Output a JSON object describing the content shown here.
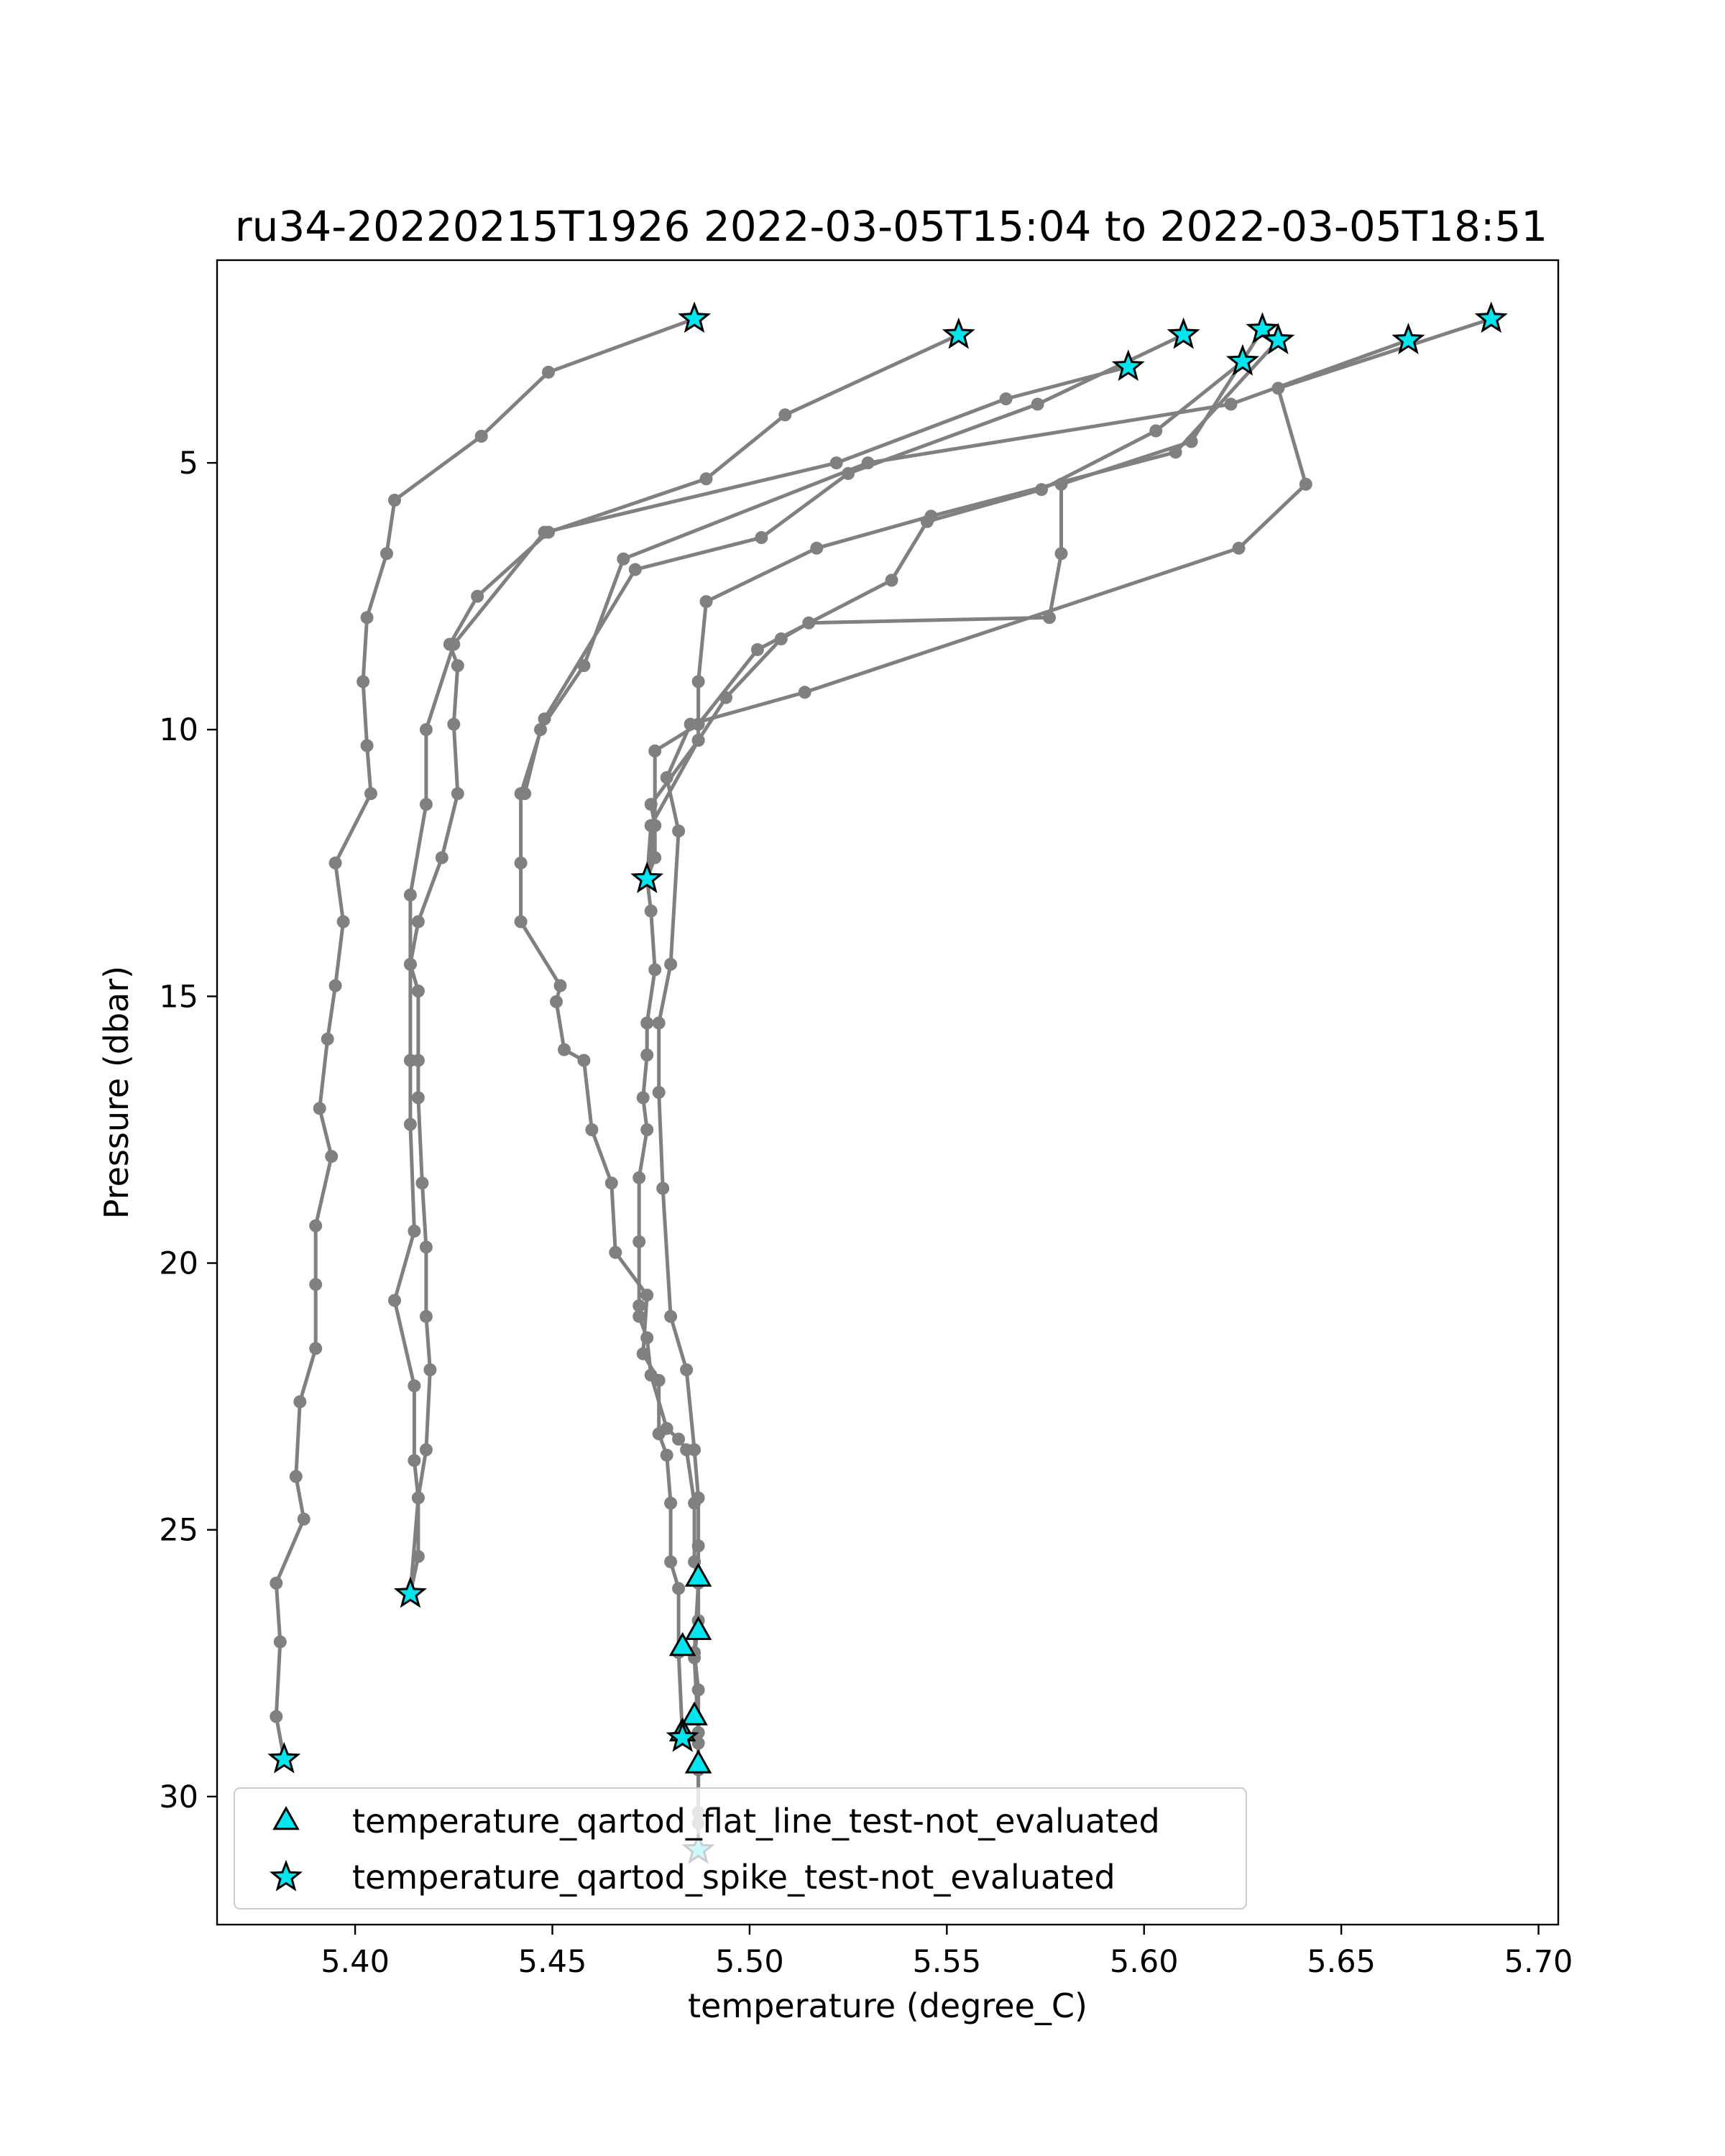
{
  "chart_data": {
    "type": "scatter",
    "title": "ru34-20220215T1926 2022-03-05T15:04 to 2022-03-05T18:51",
    "xlabel": "temperature (degree_C)",
    "ylabel": "Pressure (dbar)",
    "xlim": [
      5.365,
      5.705
    ],
    "ylim": [
      32.4,
      1.2
    ],
    "y_inverted": true,
    "x_ticks": [
      5.4,
      5.45,
      5.5,
      5.55,
      5.6,
      5.65,
      5.7
    ],
    "x_tick_labels": [
      "5.40",
      "5.45",
      "5.50",
      "5.55",
      "5.60",
      "5.65",
      "5.70"
    ],
    "y_ticks": [
      5,
      10,
      15,
      20,
      25,
      30
    ],
    "y_tick_labels": [
      "5",
      "10",
      "15",
      "20",
      "25",
      "30"
    ],
    "grid": false,
    "legend_position": "lower-left",
    "colors": {
      "profile_line": "#808080",
      "marker_fill": "#00e5ee",
      "marker_edge": "#000000"
    },
    "series": [
      {
        "role": "profile",
        "points": [
          [
            5.486,
            2.3
          ],
          [
            5.449,
            3.3
          ],
          [
            5.432,
            4.5
          ],
          [
            5.41,
            5.7
          ],
          [
            5.408,
            6.7
          ],
          [
            5.403,
            7.9
          ],
          [
            5.402,
            9.1
          ],
          [
            5.403,
            10.3
          ],
          [
            5.404,
            11.2
          ],
          [
            5.395,
            12.5
          ],
          [
            5.397,
            13.6
          ],
          [
            5.395,
            14.8
          ],
          [
            5.393,
            15.8
          ],
          [
            5.391,
            17.1
          ],
          [
            5.394,
            18.0
          ],
          [
            5.39,
            19.3
          ],
          [
            5.39,
            20.4
          ],
          [
            5.39,
            21.6
          ],
          [
            5.386,
            22.6
          ],
          [
            5.385,
            24.0
          ],
          [
            5.387,
            24.8
          ],
          [
            5.38,
            26.0
          ],
          [
            5.381,
            27.1
          ],
          [
            5.38,
            28.5
          ],
          [
            5.382,
            29.3
          ]
        ]
      },
      {
        "role": "profile",
        "points": [
          [
            5.553,
            2.6
          ],
          [
            5.509,
            4.1
          ],
          [
            5.489,
            5.3
          ],
          [
            5.449,
            6.3
          ],
          [
            5.431,
            7.5
          ],
          [
            5.424,
            8.4
          ],
          [
            5.426,
            8.8
          ],
          [
            5.425,
            9.9
          ],
          [
            5.426,
            11.2
          ],
          [
            5.422,
            12.4
          ],
          [
            5.416,
            13.6
          ],
          [
            5.414,
            14.4
          ],
          [
            5.416,
            14.9
          ],
          [
            5.416,
            16.2
          ],
          [
            5.416,
            16.9
          ],
          [
            5.417,
            18.5
          ],
          [
            5.418,
            19.7
          ],
          [
            5.418,
            21.0
          ],
          [
            5.419,
            22.0
          ],
          [
            5.418,
            23.5
          ],
          [
            5.416,
            24.4
          ],
          [
            5.416,
            25.5
          ],
          [
            5.414,
            26.2
          ]
        ]
      },
      {
        "role": "profile",
        "points": [
          [
            5.596,
            3.2
          ],
          [
            5.565,
            3.8
          ],
          [
            5.522,
            5.0
          ],
          [
            5.448,
            6.3
          ],
          [
            5.425,
            8.4
          ],
          [
            5.418,
            10.0
          ],
          [
            5.418,
            11.4
          ],
          [
            5.414,
            13.1
          ],
          [
            5.414,
            14.4
          ],
          [
            5.414,
            16.2
          ],
          [
            5.414,
            17.4
          ],
          [
            5.415,
            19.4
          ],
          [
            5.41,
            20.7
          ],
          [
            5.415,
            22.3
          ],
          [
            5.415,
            23.7
          ],
          [
            5.416,
            24.4
          ],
          [
            5.414,
            26.2
          ]
        ]
      },
      {
        "role": "profile",
        "points": [
          [
            5.61,
            2.6
          ],
          [
            5.573,
            3.9
          ],
          [
            5.525,
            5.2
          ],
          [
            5.503,
            6.4
          ],
          [
            5.471,
            7.0
          ],
          [
            5.448,
            9.8
          ],
          [
            5.442,
            11.2
          ],
          [
            5.442,
            12.5
          ],
          [
            5.442,
            13.6
          ],
          [
            5.452,
            14.8
          ],
          [
            5.451,
            15.1
          ],
          [
            5.453,
            16.0
          ],
          [
            5.458,
            16.2
          ],
          [
            5.46,
            17.5
          ],
          [
            5.465,
            18.5
          ],
          [
            5.466,
            19.8
          ],
          [
            5.474,
            20.6
          ],
          [
            5.473,
            21.7
          ],
          [
            5.477,
            22.2
          ],
          [
            5.477,
            23.2
          ],
          [
            5.479,
            23.6
          ],
          [
            5.48,
            24.5
          ],
          [
            5.48,
            25.6
          ],
          [
            5.482,
            26.1
          ],
          [
            5.482,
            27.3
          ],
          [
            5.483,
            28.9
          ]
        ]
      },
      {
        "role": "profile",
        "points": [
          [
            5.625,
            3.1
          ],
          [
            5.603,
            4.4
          ],
          [
            5.574,
            5.5
          ],
          [
            5.545,
            6.1
          ],
          [
            5.536,
            7.2
          ],
          [
            5.502,
            8.5
          ],
          [
            5.487,
            9.9
          ],
          [
            5.476,
            10.4
          ],
          [
            5.476,
            11.8
          ],
          [
            5.476,
            12.4
          ],
          [
            5.474,
            12.8
          ],
          [
            5.475,
            13.4
          ],
          [
            5.476,
            14.5
          ],
          [
            5.474,
            15.5
          ],
          [
            5.474,
            16.1
          ],
          [
            5.473,
            16.9
          ],
          [
            5.474,
            17.5
          ],
          [
            5.472,
            18.4
          ],
          [
            5.472,
            19.6
          ],
          [
            5.472,
            20.8
          ],
          [
            5.472,
            21.0
          ],
          [
            5.474,
            21.4
          ],
          [
            5.475,
            22.1
          ],
          [
            5.479,
            23.1
          ],
          [
            5.482,
            23.3
          ],
          [
            5.484,
            23.5
          ],
          [
            5.486,
            24.5
          ],
          [
            5.486,
            25.6
          ],
          [
            5.487,
            26.0
          ],
          [
            5.486,
            27.3
          ],
          [
            5.487,
            28.0
          ],
          [
            5.487,
            29.0
          ],
          [
            5.487,
            30.3
          ],
          [
            5.487,
            31.0
          ]
        ]
      },
      {
        "role": "profile",
        "points": [
          [
            5.63,
            2.5
          ],
          [
            5.612,
            4.6
          ],
          [
            5.579,
            5.4
          ],
          [
            5.579,
            6.7
          ],
          [
            5.576,
            7.9
          ],
          [
            5.515,
            8.0
          ],
          [
            5.508,
            8.3
          ],
          [
            5.494,
            9.4
          ],
          [
            5.487,
            10.2
          ],
          [
            5.475,
            11.8
          ],
          [
            5.474,
            12.8
          ]
        ]
      },
      {
        "role": "profile",
        "points": [
          [
            5.634,
            2.7
          ],
          [
            5.608,
            4.8
          ],
          [
            5.546,
            6.0
          ],
          [
            5.517,
            6.6
          ],
          [
            5.489,
            7.6
          ],
          [
            5.487,
            9.1
          ],
          [
            5.487,
            10.2
          ],
          [
            5.475,
            11.4
          ],
          [
            5.476,
            11.8
          ],
          [
            5.474,
            12.8
          ]
        ]
      },
      {
        "role": "profile",
        "points": [
          [
            5.667,
            2.7
          ],
          [
            5.622,
            3.9
          ],
          [
            5.53,
            5.0
          ],
          [
            5.468,
            6.8
          ],
          [
            5.458,
            8.8
          ],
          [
            5.447,
            10.0
          ],
          [
            5.443,
            11.2
          ]
        ]
      },
      {
        "role": "profile",
        "points": [
          [
            5.688,
            2.3
          ],
          [
            5.634,
            3.6
          ],
          [
            5.641,
            5.4
          ],
          [
            5.624,
            6.6
          ],
          [
            5.514,
            9.3
          ],
          [
            5.485,
            9.9
          ],
          [
            5.479,
            10.9
          ],
          [
            5.482,
            11.9
          ],
          [
            5.48,
            14.4
          ],
          [
            5.477,
            15.5
          ],
          [
            5.477,
            16.8
          ],
          [
            5.478,
            18.6
          ],
          [
            5.48,
            21.0
          ],
          [
            5.484,
            22.0
          ],
          [
            5.486,
            23.5
          ],
          [
            5.487,
            24.4
          ],
          [
            5.487,
            25.3
          ],
          [
            5.487,
            26.7
          ],
          [
            5.486,
            27.4
          ],
          [
            5.487,
            28.8
          ],
          [
            5.487,
            29.5
          ],
          [
            5.487,
            30.5
          ],
          [
            5.487,
            31.0
          ]
        ]
      },
      {
        "role": "markers",
        "marker": "triangle",
        "name": "temperature_qartod_flat_line_test-not_evaluated",
        "points": [
          [
            5.487,
            25.9
          ],
          [
            5.487,
            26.9
          ],
          [
            5.483,
            27.2
          ],
          [
            5.486,
            28.5
          ],
          [
            5.483,
            28.8
          ],
          [
            5.487,
            29.4
          ]
        ]
      },
      {
        "role": "markers",
        "marker": "star",
        "name": "temperature_qartod_spike_test-not_evaluated",
        "points": [
          [
            5.486,
            2.3
          ],
          [
            5.553,
            2.6
          ],
          [
            5.596,
            3.2
          ],
          [
            5.61,
            2.6
          ],
          [
            5.63,
            2.5
          ],
          [
            5.634,
            2.7
          ],
          [
            5.625,
            3.1
          ],
          [
            5.667,
            2.7
          ],
          [
            5.688,
            2.3
          ],
          [
            5.474,
            12.8
          ],
          [
            5.414,
            26.2
          ],
          [
            5.382,
            29.3
          ],
          [
            5.483,
            28.9
          ],
          [
            5.487,
            31.0
          ]
        ]
      }
    ]
  }
}
